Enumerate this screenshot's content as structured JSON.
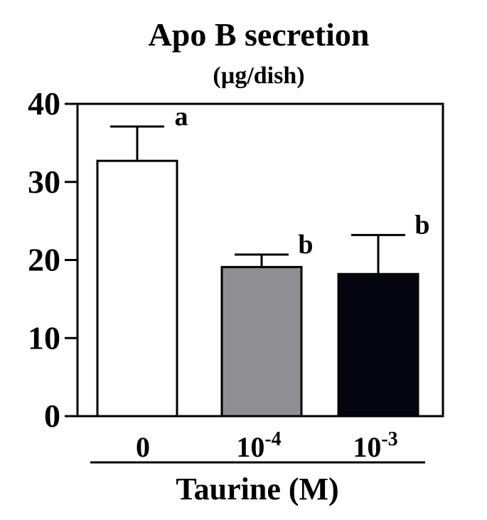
{
  "chart_data": {
    "type": "bar",
    "title": "Apo B secretion",
    "subtitle": "(µg/dish)",
    "xlabel": "Taurine (M)",
    "ylabel": "",
    "ylim": [
      0,
      40
    ],
    "yticks": [
      "0",
      "10",
      "20",
      "30",
      "40"
    ],
    "categories": [
      {
        "base": "0",
        "exp": ""
      },
      {
        "base": "10",
        "exp": "-4"
      },
      {
        "base": "10",
        "exp": "-3"
      }
    ],
    "values": [
      32.7,
      19.1,
      18.2
    ],
    "errors": [
      4.4,
      1.6,
      5.0
    ],
    "significance": [
      "a",
      "b",
      "b"
    ],
    "bar_colors": [
      "#ffffff",
      "#8e8e93",
      "#05050f"
    ],
    "grid": false,
    "legend": "none"
  }
}
